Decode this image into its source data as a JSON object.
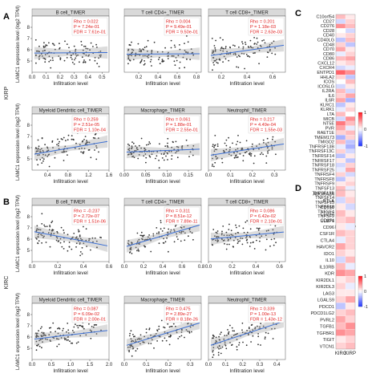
{
  "panel_letters": [
    "A",
    "B",
    "C",
    "D"
  ],
  "chart_data": [
    {
      "type": "scatter",
      "group": "A",
      "cancer": "KIRP",
      "xlabel": "Infiltration level",
      "ylabel": "LAMC1 expression level (log2 TPM)",
      "yticks": [
        "5",
        "6",
        "7",
        "8"
      ],
      "ylim": [
        4,
        9
      ],
      "plots": [
        {
          "title": "B cell_TIMER",
          "rho": "Rho = 0.022",
          "p": "P = 7.24e-01",
          "fdr": "FDR = 7.61e-01",
          "xticks": [
            "0.0",
            "0.1",
            "0.2",
            "0.3",
            "0.4",
            "0.5"
          ],
          "xlim": [
            0,
            0.55
          ],
          "slope": 0.1,
          "intercept": 5.7
        },
        {
          "title": "T cell CD4+_TIMER",
          "rho": "Rho = 0.004",
          "p": "P = 9.49e-01",
          "fdr": "FDR = 9.50e-01",
          "xticks": [
            "0.2",
            "0.4",
            "0.6",
            "0.8"
          ],
          "xlim": [
            0.05,
            0.85
          ],
          "slope": 0.05,
          "intercept": 5.6
        },
        {
          "title": "T cell CD8+_TIMER",
          "rho": "Rho = 0.201",
          "p": "P = 1.18e-03",
          "fdr": "FDR = 2.63e-03",
          "xticks": [
            "0.2",
            "0.4",
            "0.6"
          ],
          "xlim": [
            0.1,
            0.7
          ],
          "slope": 1.6,
          "intercept": 5.3
        },
        {
          "title": "Myeloid Dendritic cell_TIMER",
          "rho": "Rho = 0.259",
          "p": "P = 2.51e-05",
          "fdr": "FDR = 1.10e-04",
          "xticks": [
            "0.4",
            "0.8",
            "1.2",
            "1.6"
          ],
          "xlim": [
            0.1,
            1.6
          ],
          "slope": 0.8,
          "intercept": 5.3
        },
        {
          "title": "Macrophage_TIMER",
          "rho": "Rho = 0.061",
          "p": "P = 1.88e-01",
          "fdr": "FDR = 2.55e-01",
          "xticks": [
            "0.00",
            "0.05",
            "0.10",
            "0.15"
          ],
          "xlim": [
            0,
            0.18
          ],
          "slope": 1.5,
          "intercept": 5.6
        },
        {
          "title": "Neutrophil_TIMER",
          "rho": "Rho = 0.217",
          "p": "P = 4.49e-04",
          "fdr": "FDR = 1.55e-03",
          "xticks": [
            "0.0",
            "0.1",
            "0.2",
            "0.3"
          ],
          "xlim": [
            0,
            0.35
          ],
          "slope": 3.0,
          "intercept": 5.3
        }
      ]
    },
    {
      "type": "scatter",
      "group": "B",
      "cancer": "KIRC",
      "xlabel": "Infiltration level",
      "ylabel": "LAMC1 expression level (log2 TPM)",
      "yticks": [
        "5",
        "6",
        "7",
        "8"
      ],
      "ylim": [
        4,
        9
      ],
      "plots": [
        {
          "title": "B cell_TIMER",
          "rho": "Rho = -0.237",
          "p": "P = 2.72e-07",
          "fdr": "FDR = 1.51e-06",
          "xticks": [
            "0.0",
            "0.2",
            "0.4",
            "0.6"
          ],
          "xlim": [
            0,
            0.6
          ],
          "slope": -2.2,
          "intercept": 6.7
        },
        {
          "title": "T cell CD4+_TIMER",
          "rho": "Rho = 0.311",
          "p": "P = 8.51e-12",
          "fdr": "FDR = 7.89e-11",
          "xticks": [
            "0.0",
            "0.2",
            "0.4",
            "0.6",
            "0.8"
          ],
          "xlim": [
            0,
            0.8
          ],
          "slope": 2.5,
          "intercept": 5.3
        },
        {
          "title": "T cell CD8+_TIMER",
          "rho": "Rho = 0.086",
          "p": "P = 6.42e-02",
          "fdr": "FDR = 2.10e-01",
          "xticks": [
            "0.0",
            "0.2",
            "0.4",
            "0.6"
          ],
          "xlim": [
            0,
            0.65
          ],
          "slope": 1.0,
          "intercept": 6.0
        },
        {
          "title": "Myeloid Dendritic cell_TIMER",
          "rho": "Rho = 0.087",
          "p": "P = 6.09e-02",
          "fdr": "FDR = 2.00e-01",
          "xticks": [
            "0.0",
            "0.5",
            "1.0",
            "1.5",
            "2.0"
          ],
          "xlim": [
            0,
            2.0
          ],
          "slope": 0.4,
          "intercept": 5.8
        },
        {
          "title": "Macrophage_TIMER",
          "rho": "Rho = 0.475",
          "p": "P = 2.89e-27",
          "fdr": "FDR = 8.18e-26",
          "xticks": [
            "0.0",
            "0.1",
            "0.2",
            "0.3"
          ],
          "xlim": [
            0,
            0.35
          ],
          "slope": 6.0,
          "intercept": 5.2
        },
        {
          "title": "Neutrophil_TIMER",
          "rho": "Rho = 0.339",
          "p": "P = 1.00e-13",
          "fdr": "FDR = 1.43e-12",
          "xticks": [
            "0.0",
            "0.1",
            "0.2",
            "0.3",
            "0.4"
          ],
          "xlim": [
            0,
            0.45
          ],
          "slope": 5.0,
          "intercept": 5.2
        }
      ]
    },
    {
      "type": "heatmap",
      "group": "C",
      "columns": [
        "KIRC",
        "KIRP"
      ],
      "rows": [
        "C10orf54",
        "CD27",
        "CD276",
        "CD28",
        "CD40",
        "CD40LG",
        "CD48",
        "CD70",
        "CD80",
        "CD86",
        "CXCL12",
        "CXCR4",
        "ENTPD1",
        "HHLA2",
        "ICOS",
        "ICOSLG",
        "IL2RA",
        "IL6",
        "IL6R",
        "KLRC1",
        "KLRK1",
        "LTA",
        "MICB",
        "NT5E",
        "PVR",
        "RAET1E",
        "TMEM173",
        "TMIGD2",
        "TNFRSF13B",
        "TNFRSF13C",
        "TNFRSF14",
        "TNFRSF17",
        "TNFRSF18",
        "TNFRSF25",
        "TNFRSF4",
        "TNFRSF8",
        "TNFRSF9",
        "TNFSF13",
        "TNFSF13B",
        "TNFSF14",
        "TNFSF15",
        "TNFSF18",
        "TNFSF4",
        "TNFSF9",
        "ULBP1"
      ],
      "values": [
        [
          0.3,
          0.1
        ],
        [
          -0.2,
          0.2
        ],
        [
          0.5,
          0.3
        ],
        [
          0.0,
          -0.2
        ],
        [
          0.1,
          0.2
        ],
        [
          -0.3,
          0.3
        ],
        [
          0.2,
          -0.3
        ],
        [
          0.4,
          0.1
        ],
        [
          -0.1,
          0.2
        ],
        [
          0.3,
          0.4
        ],
        [
          0.1,
          0.2
        ],
        [
          -0.2,
          -0.1
        ],
        [
          0.7,
          0.5
        ],
        [
          0.2,
          -0.3
        ],
        [
          0.0,
          0.3
        ],
        [
          -0.2,
          0.1
        ],
        [
          0.3,
          -0.2
        ],
        [
          0.2,
          0.4
        ],
        [
          0.4,
          -0.4
        ],
        [
          -0.3,
          0.1
        ],
        [
          -0.1,
          0.2
        ],
        [
          0.3,
          0.0
        ],
        [
          -0.2,
          0.5
        ],
        [
          0.6,
          0.3
        ],
        [
          0.4,
          -0.1
        ],
        [
          0.2,
          0.3
        ],
        [
          -0.4,
          0.2
        ],
        [
          0.3,
          -0.3
        ],
        [
          -0.1,
          -0.4
        ],
        [
          0.2,
          -0.2
        ],
        [
          -0.3,
          0.1
        ],
        [
          0.1,
          -0.3
        ],
        [
          -0.2,
          0.2
        ],
        [
          -0.1,
          0.4
        ],
        [
          0.2,
          -0.2
        ],
        [
          -0.3,
          0.1
        ],
        [
          0.1,
          0.2
        ],
        [
          0.3,
          -0.1
        ],
        [
          -0.4,
          0.3
        ],
        [
          0.4,
          0.0
        ],
        [
          0.1,
          0.1
        ],
        [
          -0.1,
          0.3
        ],
        [
          0.2,
          -0.2
        ],
        [
          0.3,
          0.2
        ],
        [
          0.0,
          0.1
        ]
      ],
      "scale_ticks": [
        "1",
        "0",
        "-1"
      ],
      "vmin": -1,
      "vmax": 1
    },
    {
      "type": "heatmap",
      "group": "D",
      "columns": [
        "KIRC",
        "KIRP"
      ],
      "rows": [
        "ADORA2A",
        "BTLA",
        "CD160",
        "CD244",
        "CD274",
        "CD96",
        "CSF1R",
        "CTLA4",
        "HAVCR2",
        "IDO1",
        "IL10",
        "IL10RB",
        "KDR",
        "KIR2DL1",
        "KIR2DL3",
        "LAG3",
        "LGALS9",
        "PDCD1",
        "PDCD1LG2",
        "PVRL2",
        "TGFB1",
        "TGFBR1",
        "TIGIT",
        "VTCN1"
      ],
      "values": [
        [
          0.3,
          0.1
        ],
        [
          -0.2,
          0.2
        ],
        [
          0.1,
          -0.2
        ],
        [
          0.3,
          0.1
        ],
        [
          0.2,
          0.3
        ],
        [
          0.1,
          -0.1
        ],
        [
          0.3,
          0.2
        ],
        [
          -0.1,
          0.2
        ],
        [
          0.4,
          0.2
        ],
        [
          0.2,
          0.1
        ],
        [
          -0.2,
          0.3
        ],
        [
          0.3,
          -0.1
        ],
        [
          0.5,
          0.4
        ],
        [
          0.1,
          0.2
        ],
        [
          0.2,
          -0.1
        ],
        [
          0.1,
          0.1
        ],
        [
          0.2,
          0.4
        ],
        [
          -0.3,
          0.1
        ],
        [
          0.2,
          0.3
        ],
        [
          0.4,
          0.2
        ],
        [
          0.3,
          0.5
        ],
        [
          0.5,
          0.4
        ],
        [
          0.1,
          0.2
        ],
        [
          0.2,
          0.3
        ]
      ],
      "scale_ticks": [
        "1",
        "0",
        "-1"
      ],
      "vmin": -1,
      "vmax": 1
    }
  ]
}
